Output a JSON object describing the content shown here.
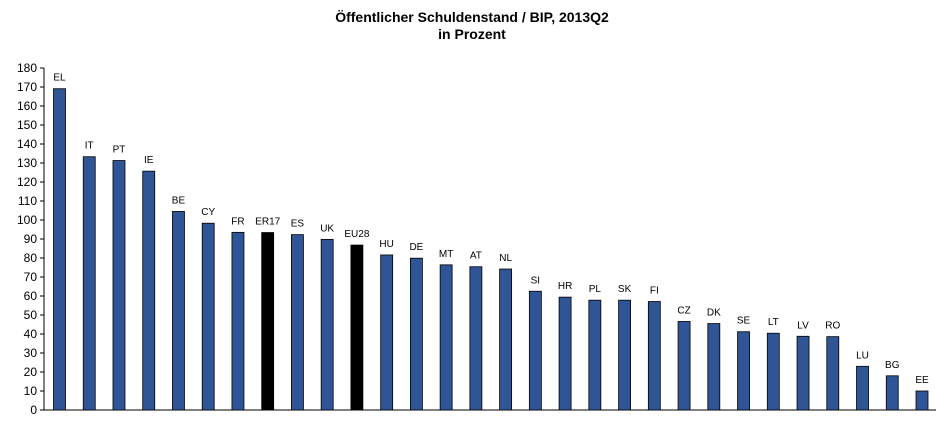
{
  "chart_data": {
    "type": "bar",
    "title": "Öffentlicher Schuldenstand / BIP, 2013Q2",
    "subtitle": "in Prozent",
    "xlabel": "",
    "ylabel": "",
    "ylim": [
      0,
      180
    ],
    "ytick_step": 10,
    "grid": false,
    "legend": "none",
    "categories": [
      "EL",
      "IT",
      "PT",
      "IE",
      "BE",
      "CY",
      "FR",
      "ER17",
      "ES",
      "UK",
      "EU28",
      "HU",
      "DE",
      "MT",
      "AT",
      "NL",
      "SI",
      "HR",
      "PL",
      "SK",
      "FI",
      "CZ",
      "DK",
      "SE",
      "LT",
      "LV",
      "RO",
      "LU",
      "BG",
      "EE"
    ],
    "values": [
      169.1,
      133.3,
      131.3,
      125.7,
      104.5,
      98.3,
      93.5,
      93.4,
      92.3,
      89.8,
      86.8,
      81.6,
      79.9,
      76.4,
      75.4,
      74.2,
      62.5,
      59.4,
      57.8,
      57.8,
      57.1,
      46.6,
      45.5,
      41.2,
      40.4,
      38.8,
      38.6,
      23.0,
      18.0,
      10.0
    ],
    "colors": {
      "default": "#2f5597",
      "highlight": "#000000",
      "highlight_categories": [
        "ER17",
        "EU28"
      ]
    }
  }
}
